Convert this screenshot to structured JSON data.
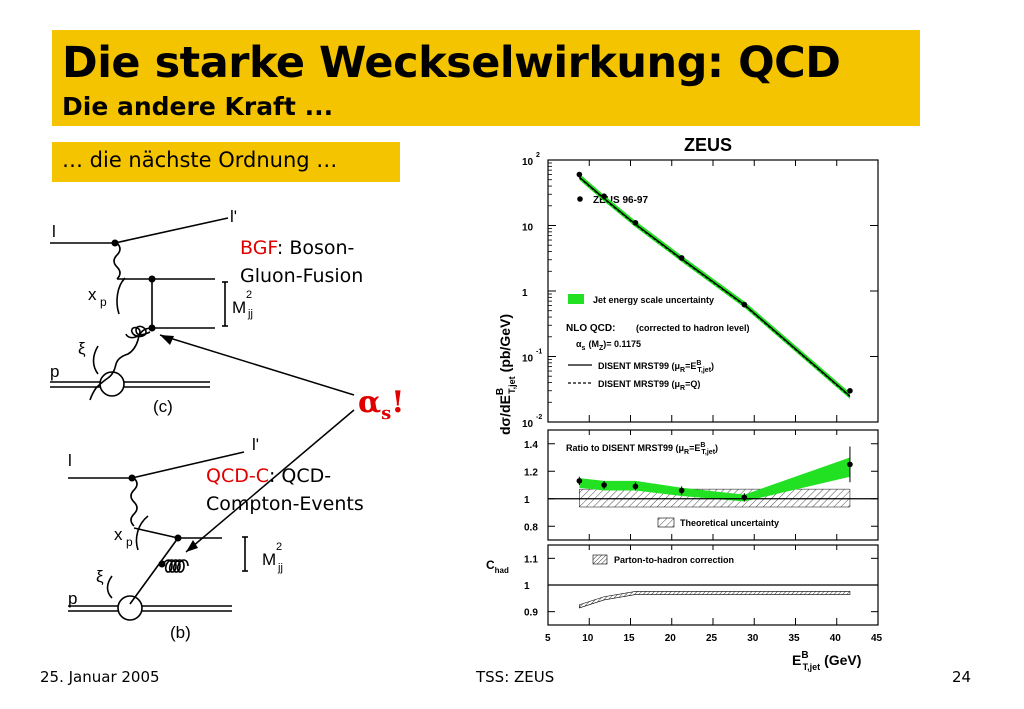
{
  "slide": {
    "title": "Die starke Weckselwirkung: QCD",
    "subtitle": "Die andere Kraft ...",
    "section_label": "… die nächste Ordnung …",
    "alpha_symbol": "α",
    "alpha_sub": "s",
    "alpha_bang": "!",
    "colors": {
      "title_bg": "#f5c400",
      "accent_red": "#e00000",
      "band_green": "#22e022"
    }
  },
  "diagram_c": {
    "label_l": "l",
    "label_lprime": "l'",
    "label_xp": "x",
    "label_xp_sub": "p",
    "label_xi": "ξ",
    "label_p": "p",
    "label_mjj": "M",
    "label_mjj_sup": "2",
    "label_mjj_sub": "jj",
    "caption": "(c)",
    "name_abbrev": "BGF",
    "name_rest": ": Boson-",
    "name_line2": "Gluon-Fusion"
  },
  "diagram_b": {
    "label_l": "l",
    "label_lprime": "l'",
    "label_xp": "x",
    "label_xp_sub": "p",
    "label_xi": "ξ",
    "label_p": "p",
    "label_mjj": "M",
    "label_mjj_sup": "2",
    "label_mjj_sub": "jj",
    "caption": "(b)",
    "name_abbrev": "QCD-C",
    "name_rest": ": QCD-",
    "name_line2": "Compton-Events"
  },
  "plot": {
    "experiment": "ZEUS",
    "ylabel_main": "dσ/dE",
    "ylabel_sup": "B",
    "ylabel_sub": "T,jet",
    "ylabel_units": "(pb/GeV)",
    "legend_data": "ZEUS 96-97",
    "legend_band": "Jet energy scale uncertainty",
    "legend_nlo_title": "NLO QCD:",
    "legend_nlo_note": "(corrected to hadron level)",
    "legend_alpha": "α",
    "legend_alpha_sub": "s",
    "legend_alpha_rest": "(M",
    "legend_alpha_sub2": "Z",
    "legend_alpha_value": ")= 0.1175",
    "legend_solid_a": "DISENT MRST99 (μ",
    "legend_solid_sub": "R",
    "legend_solid_b": "=E",
    "legend_solid_sup": "B",
    "legend_solid_sub2": "T,jet",
    "legend_solid_c": ")",
    "legend_dashed_a": "DISENT MRST99 (μ",
    "legend_dashed_sub": "R",
    "legend_dashed_b": "=Q)",
    "ratio_title_a": "Ratio to DISENT MRST99 (μ",
    "ratio_title_sub": "R",
    "ratio_title_b": "=E",
    "ratio_title_sup": "B",
    "ratio_title_sub2": "T,jet",
    "ratio_title_c": ")",
    "theory_unc": "Theoretical uncertainty",
    "chad_label": "C",
    "chad_sub": "had",
    "chad_legend": "Parton-to-hadron correction",
    "xlabel_main": "E",
    "xlabel_sup": "B",
    "xlabel_sub": "T,jet",
    "xlabel_units": "(GeV)",
    "top_tick_labels": [
      "10",
      "10",
      "1",
      "10",
      "10"
    ],
    "top_tick_exps": [
      "2",
      "",
      "",
      "-1",
      "-2"
    ],
    "ratio_tick_labels": [
      "1.4",
      "1.2",
      "1",
      "0.8"
    ],
    "chad_tick_labels": [
      "1.1",
      "1",
      "0.9"
    ],
    "x_tick_labels": [
      "5",
      "10",
      "15",
      "20",
      "25",
      "30",
      "35",
      "40",
      "45"
    ]
  },
  "chart_data": {
    "type": "scatter",
    "title": "ZEUS",
    "xlabel": "E_T,jet^B (GeV)",
    "ylabel": "dσ/dE_T,jet^B (pb/GeV)",
    "xlim": [
      5,
      45
    ],
    "ylim": [
      0.01,
      100
    ],
    "log_y": true,
    "series": [
      {
        "name": "ZEUS 96-97",
        "x": [
          8.8,
          11.8,
          15.6,
          21.2,
          28.8,
          41.6
        ],
        "y": [
          60,
          28,
          11,
          3.2,
          0.62,
          0.03
        ]
      },
      {
        "name": "DISENT MRST99 (μR=E_T,jet)",
        "x": [
          8.8,
          11.8,
          15.6,
          21.2,
          28.8,
          41.6
        ],
        "y": [
          55,
          26,
          10.5,
          3.1,
          0.62,
          0.025
        ]
      }
    ],
    "ratio": {
      "ylim": [
        0.7,
        1.5
      ],
      "data_x": [
        8.8,
        11.8,
        15.6,
        21.2,
        28.8,
        41.6
      ],
      "data_y": [
        1.13,
        1.1,
        1.09,
        1.06,
        1.01,
        1.25
      ],
      "band_low": [
        1.08,
        1.06,
        1.06,
        1.02,
        0.98,
        1.16
      ],
      "band_high": [
        1.15,
        1.13,
        1.13,
        1.08,
        1.03,
        1.3
      ],
      "theory_low": [
        0.94,
        0.94,
        0.94,
        0.94,
        0.94,
        0.94
      ],
      "theory_high": [
        1.07,
        1.07,
        1.07,
        1.07,
        1.07,
        1.07
      ]
    },
    "chad": {
      "ylim": [
        0.85,
        1.15
      ],
      "x": [
        8.8,
        11.8,
        15.6,
        21.2,
        28.8,
        41.6
      ],
      "y": [
        0.92,
        0.95,
        0.97,
        0.97,
        0.97,
        0.97
      ]
    }
  },
  "footer": {
    "date": "25. Januar 2005",
    "center": "TSS: ZEUS",
    "page": "24"
  }
}
